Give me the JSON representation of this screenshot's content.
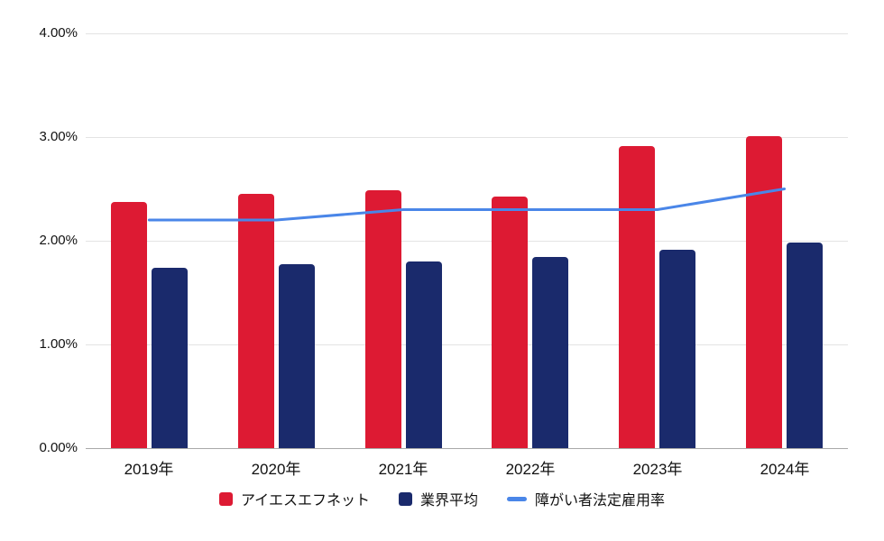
{
  "chart_data": {
    "type": "bar",
    "title": "",
    "categories": [
      "2019年",
      "2020年",
      "2021年",
      "2022年",
      "2023年",
      "2024年"
    ],
    "series": [
      {
        "name": "アイエスエフネット",
        "type": "bar",
        "color": "#dd1a33",
        "values": [
          2.37,
          2.45,
          2.49,
          2.43,
          2.91,
          3.01
        ]
      },
      {
        "name": "業界平均",
        "type": "bar",
        "color": "#1a2a6c",
        "values": [
          1.74,
          1.77,
          1.8,
          1.84,
          1.91,
          1.98
        ]
      },
      {
        "name": "障がい者法定雇用率",
        "type": "line",
        "color": "#4a86e8",
        "values": [
          2.2,
          2.2,
          2.3,
          2.3,
          2.3,
          2.5
        ]
      }
    ],
    "ylim": [
      0,
      4
    ],
    "y_tick_values": [
      0,
      1,
      2,
      3,
      4
    ],
    "y_tick_labels": [
      "0.00%",
      "1.00%",
      "2.00%",
      "3.00%",
      "4.00%"
    ],
    "grid": true,
    "legend_position": "bottom"
  }
}
